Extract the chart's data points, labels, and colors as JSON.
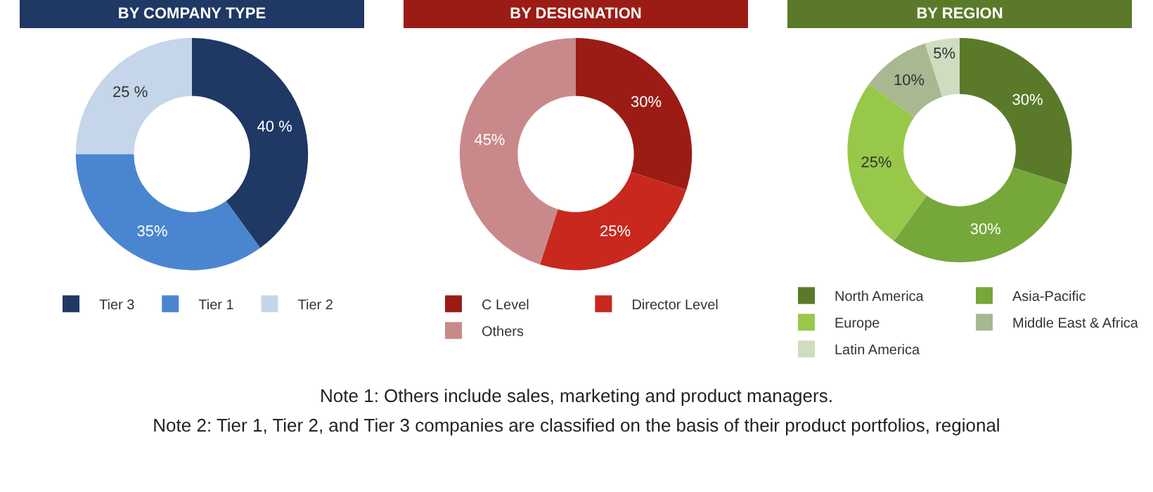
{
  "chart_data": [
    {
      "type": "donut",
      "title": "BY COMPANY TYPE",
      "categories": [
        "Tier 3",
        "Tier 1",
        "Tier 2"
      ],
      "values": [
        40,
        35,
        25
      ],
      "value_labels": [
        "40 %",
        "35%",
        "25 %"
      ],
      "colors": [
        "#1f3864",
        "#4a86d0",
        "#c5d5ea"
      ],
      "legend": "bottom"
    },
    {
      "type": "donut",
      "title": "BY DESIGNATION",
      "categories": [
        "C Level",
        "Director Level",
        "Others"
      ],
      "values": [
        30,
        25,
        45
      ],
      "value_labels": [
        "30%",
        "25%",
        "45%"
      ],
      "colors": [
        "#9b1c14",
        "#c8281e",
        "#c9898a"
      ],
      "legend": "bottom"
    },
    {
      "type": "donut",
      "title": "BY REGION",
      "categories": [
        "North America",
        "Asia-Pacific",
        "Europe",
        "Middle East & Africa",
        "Latin America"
      ],
      "values": [
        30,
        30,
        25,
        10,
        5
      ],
      "value_labels": [
        "30%",
        "30%",
        "25%",
        "10%",
        "5%"
      ],
      "colors": [
        "#5a7a2a",
        "#76a73a",
        "#98c84a",
        "#a8b890",
        "#d0dcc0"
      ],
      "legend": "bottom",
      "annotations": [
        "Note 1: Others include sales, marketing and product managers.",
        "Note 2: Tier 1, Tier 2, and Tier 3 companies are classified on the basis of their product portfolios, regional"
      ]
    }
  ]
}
